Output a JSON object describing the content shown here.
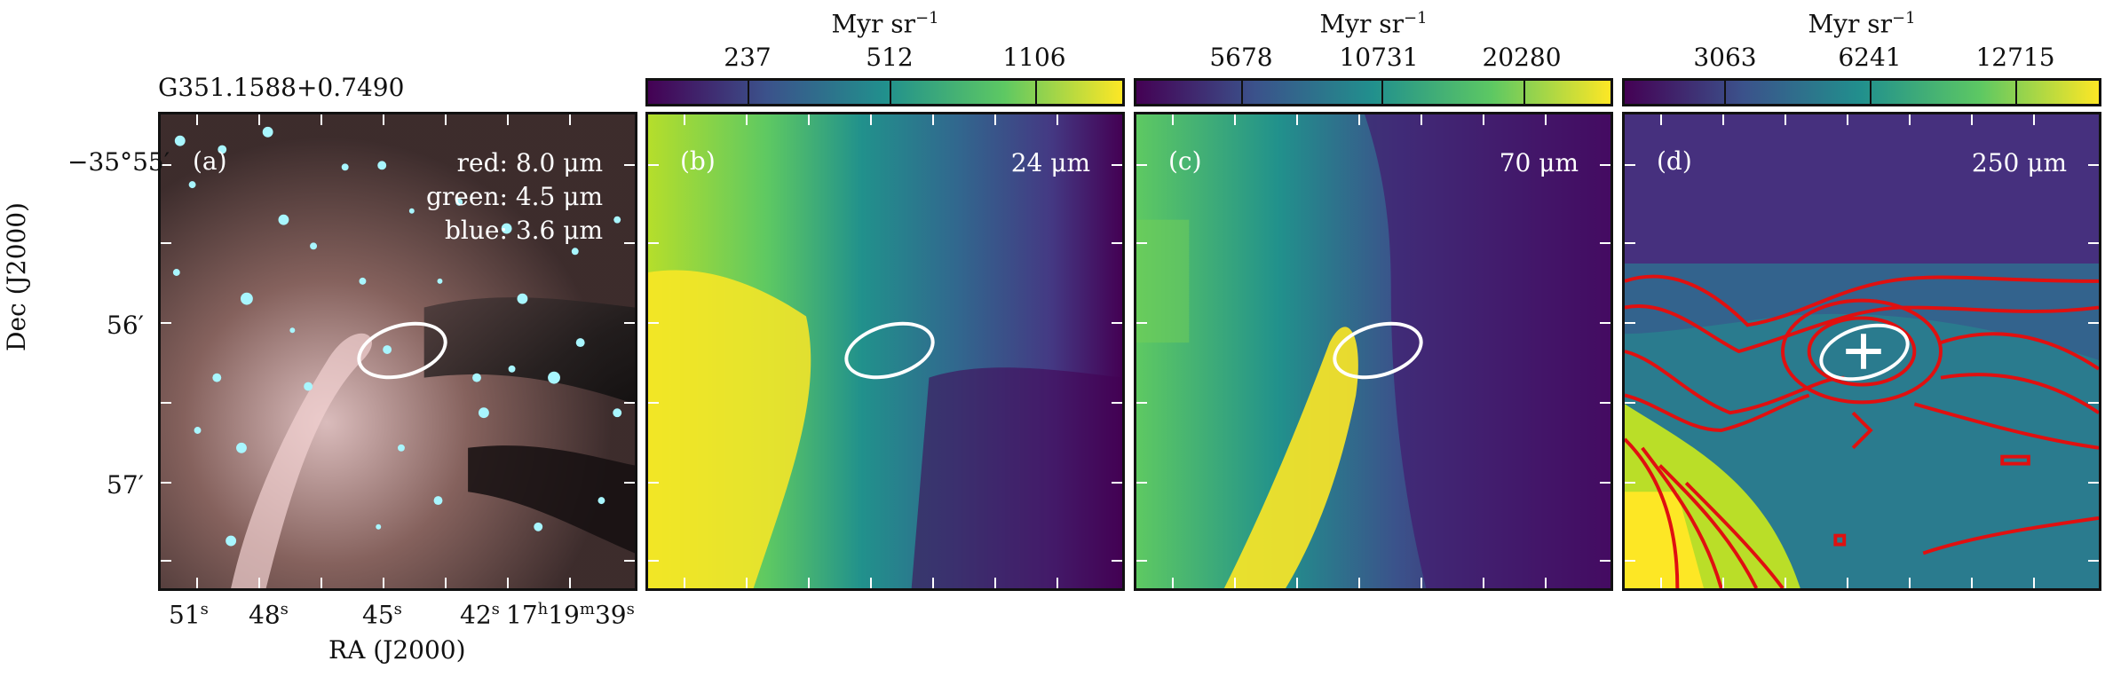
{
  "source_name": "G351.1588+0.7490",
  "panels": [
    {
      "label": "(a)",
      "legend": [
        "red: 8.0 μm",
        "green: 4.5 μm",
        "blue: 3.6 μm"
      ]
    },
    {
      "label": "(b)",
      "wavelength": "24 μm"
    },
    {
      "label": "(c)",
      "wavelength": "70 μm"
    },
    {
      "label": "(d)",
      "wavelength": "250 μm"
    }
  ],
  "colorbars": [
    {
      "unit": "Myr sr",
      "unit_exp": "−1",
      "ticks": [
        "237",
        "512",
        "1106"
      ]
    },
    {
      "unit": "Myr sr",
      "unit_exp": "−1",
      "ticks": [
        "5678",
        "10731",
        "20280"
      ]
    },
    {
      "unit": "Myr sr",
      "unit_exp": "−1",
      "ticks": [
        "3063",
        "6241",
        "12715"
      ]
    }
  ],
  "axes": {
    "ylabel": "Dec (J2000)",
    "xlabel": "RA (J2000)",
    "y_ticks": [
      "−35°55′",
      "56′",
      "57′"
    ],
    "x_ticks": [
      {
        "val": "51",
        "unit": "s"
      },
      {
        "val": "48",
        "unit": "s"
      },
      {
        "val": "45",
        "unit": "s"
      },
      {
        "val": "42",
        "unit": "s"
      },
      {
        "val": "17",
        "unit": "h",
        "val2": "19",
        "unit2": "m",
        "val3": "39",
        "unit3": "s"
      }
    ]
  },
  "colors": {
    "viridis_low": "#440154",
    "viridis_mid": "#21908d",
    "viridis_high": "#fde725",
    "contour": "#e01010"
  }
}
